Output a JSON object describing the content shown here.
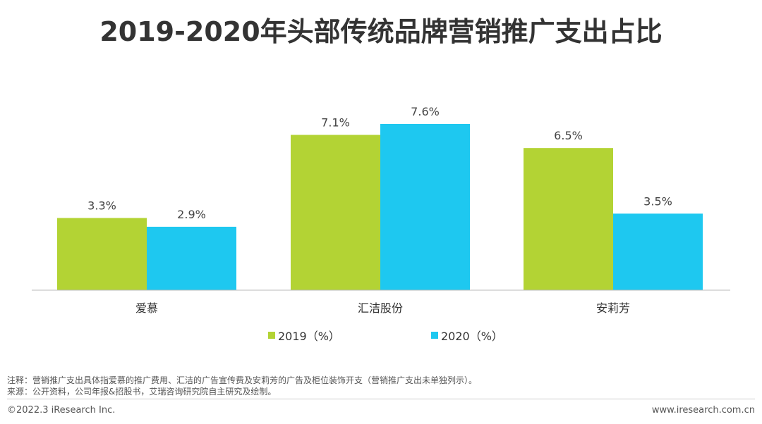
{
  "chart_data": {
    "type": "bar",
    "title": "2019-2020年头部传统品牌营销推广支出占比",
    "categories": [
      "爱慕",
      "汇洁股份",
      "安莉芳"
    ],
    "series": [
      {
        "name": "2019（%）",
        "color": "#b3d334",
        "values": [
          3.3,
          7.1,
          6.5
        ],
        "labels": [
          "3.3%",
          "7.1%",
          "6.5%"
        ]
      },
      {
        "name": "2020（%）",
        "color": "#1ec8f0",
        "values": [
          2.9,
          7.6,
          3.5
        ],
        "labels": [
          "2.9%",
          "7.6%",
          "3.5%"
        ]
      }
    ],
    "ylim": [
      0,
      8
    ],
    "legend": "bottom-center"
  },
  "notes": {
    "note": "注释：营销推广支出具体指爱慕的推广费用、汇洁的广告宣传费及安莉芳的广告及柜位装饰开支（营销推广支出未单独列示）。",
    "source": "来源：公开资料，公司年报&招股书，艾瑞咨询研究院自主研究及绘制。"
  },
  "footer": {
    "copyright": "©2022.3 iResearch Inc.",
    "url": "www.iresearch.com.cn"
  }
}
